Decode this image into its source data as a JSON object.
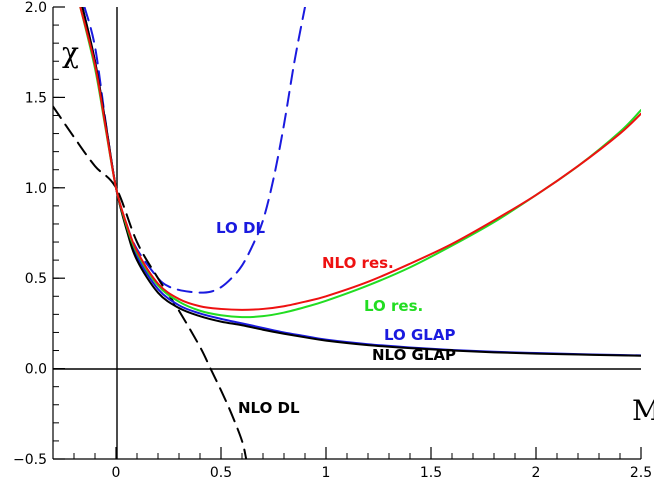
{
  "chart_data": {
    "type": "line",
    "title": "",
    "xlabel": "M",
    "ylabel": "χ",
    "xlim": [
      -0.3,
      2.5
    ],
    "ylim": [
      -0.5,
      2.0
    ],
    "grid": false,
    "legend": "none (inline curve labels)",
    "x_ticks": [
      "0",
      "0.5",
      "1",
      "1.5",
      "2",
      "2.5"
    ],
    "y_ticks": [
      "−0.5",
      "0.0",
      "0.5",
      "1.0",
      "1.5",
      "2.0"
    ],
    "series": [
      {
        "name": "LO DL",
        "color": "#1a1adf",
        "dash": "dashed",
        "points": [
          [
            -0.15,
            2.0
          ],
          [
            -0.1,
            1.78
          ],
          [
            -0.05,
            1.37
          ],
          [
            0.0,
            1.0
          ],
          [
            0.05,
            0.8
          ],
          [
            0.1,
            0.66
          ],
          [
            0.2,
            0.5
          ],
          [
            0.25,
            0.455
          ],
          [
            0.3,
            0.435
          ],
          [
            0.35,
            0.425
          ],
          [
            0.4,
            0.42
          ],
          [
            0.45,
            0.425
          ],
          [
            0.5,
            0.45
          ],
          [
            0.55,
            0.5
          ],
          [
            0.6,
            0.57
          ],
          [
            0.65,
            0.68
          ],
          [
            0.7,
            0.82
          ],
          [
            0.75,
            1.05
          ],
          [
            0.8,
            1.35
          ],
          [
            0.85,
            1.7
          ],
          [
            0.9,
            2.0
          ]
        ]
      },
      {
        "name": "NLO DL",
        "color": "#000000",
        "dash": "dashed",
        "points": [
          [
            -0.3,
            1.45
          ],
          [
            -0.2,
            1.28
          ],
          [
            -0.1,
            1.12
          ],
          [
            0.0,
            1.0
          ],
          [
            0.1,
            0.7
          ],
          [
            0.2,
            0.5
          ],
          [
            0.3,
            0.32
          ],
          [
            0.4,
            0.12
          ],
          [
            0.45,
            0.0
          ],
          [
            0.5,
            -0.12
          ],
          [
            0.55,
            -0.25
          ],
          [
            0.6,
            -0.4
          ],
          [
            0.62,
            -0.5
          ]
        ]
      },
      {
        "name": "LO GLAP",
        "color": "#1a1adf",
        "dash": "solid",
        "points": [
          [
            -0.16,
            2.0
          ],
          [
            -0.1,
            1.7
          ],
          [
            -0.05,
            1.36
          ],
          [
            0.0,
            1.0
          ],
          [
            0.05,
            0.78
          ],
          [
            0.1,
            0.62
          ],
          [
            0.2,
            0.44
          ],
          [
            0.3,
            0.35
          ],
          [
            0.4,
            0.305
          ],
          [
            0.5,
            0.275
          ],
          [
            0.6,
            0.25
          ],
          [
            0.7,
            0.225
          ],
          [
            0.8,
            0.2
          ],
          [
            0.9,
            0.18
          ],
          [
            1.0,
            0.16
          ],
          [
            1.2,
            0.135
          ],
          [
            1.4,
            0.117
          ],
          [
            1.6,
            0.103
          ],
          [
            1.8,
            0.093
          ],
          [
            2.0,
            0.086
          ],
          [
            2.2,
            0.08
          ],
          [
            2.4,
            0.075
          ],
          [
            2.5,
            0.073
          ]
        ]
      },
      {
        "name": "NLO GLAP",
        "color": "#000000",
        "dash": "solid",
        "points": [
          [
            -0.16,
            2.0
          ],
          [
            -0.1,
            1.7
          ],
          [
            -0.05,
            1.36
          ],
          [
            0.0,
            1.0
          ],
          [
            0.05,
            0.77
          ],
          [
            0.1,
            0.6
          ],
          [
            0.2,
            0.42
          ],
          [
            0.3,
            0.335
          ],
          [
            0.4,
            0.29
          ],
          [
            0.5,
            0.26
          ],
          [
            0.6,
            0.24
          ],
          [
            0.7,
            0.215
          ],
          [
            0.8,
            0.193
          ],
          [
            0.9,
            0.173
          ],
          [
            1.0,
            0.155
          ],
          [
            1.2,
            0.13
          ],
          [
            1.4,
            0.113
          ],
          [
            1.6,
            0.1
          ],
          [
            1.8,
            0.09
          ],
          [
            2.0,
            0.083
          ],
          [
            2.2,
            0.078
          ],
          [
            2.4,
            0.073
          ],
          [
            2.5,
            0.071
          ]
        ]
      },
      {
        "name": "LO res.",
        "color": "#22dd22",
        "dash": "solid",
        "points": [
          [
            -0.17,
            2.0
          ],
          [
            -0.1,
            1.66
          ],
          [
            -0.05,
            1.33
          ],
          [
            0.0,
            1.0
          ],
          [
            0.05,
            0.79
          ],
          [
            0.1,
            0.64
          ],
          [
            0.2,
            0.46
          ],
          [
            0.3,
            0.37
          ],
          [
            0.4,
            0.32
          ],
          [
            0.5,
            0.295
          ],
          [
            0.6,
            0.285
          ],
          [
            0.7,
            0.29
          ],
          [
            0.8,
            0.31
          ],
          [
            0.9,
            0.34
          ],
          [
            1.0,
            0.375
          ],
          [
            1.2,
            0.46
          ],
          [
            1.4,
            0.56
          ],
          [
            1.6,
            0.68
          ],
          [
            1.8,
            0.81
          ],
          [
            2.0,
            0.96
          ],
          [
            2.2,
            1.12
          ],
          [
            2.4,
            1.31
          ],
          [
            2.5,
            1.43
          ]
        ]
      },
      {
        "name": "NLO res.",
        "color": "#ee1111",
        "dash": "solid",
        "points": [
          [
            -0.17,
            2.0
          ],
          [
            -0.1,
            1.68
          ],
          [
            -0.05,
            1.34
          ],
          [
            0.0,
            1.0
          ],
          [
            0.05,
            0.8
          ],
          [
            0.1,
            0.65
          ],
          [
            0.2,
            0.47
          ],
          [
            0.3,
            0.385
          ],
          [
            0.4,
            0.345
          ],
          [
            0.5,
            0.33
          ],
          [
            0.6,
            0.325
          ],
          [
            0.7,
            0.33
          ],
          [
            0.8,
            0.345
          ],
          [
            0.9,
            0.37
          ],
          [
            1.0,
            0.4
          ],
          [
            1.2,
            0.48
          ],
          [
            1.4,
            0.58
          ],
          [
            1.6,
            0.69
          ],
          [
            1.8,
            0.82
          ],
          [
            2.0,
            0.96
          ],
          [
            2.2,
            1.12
          ],
          [
            2.4,
            1.3
          ],
          [
            2.5,
            1.41
          ]
        ]
      }
    ],
    "annotations": {
      "lo_dl": "LO DL",
      "nlo_res": "NLO res.",
      "lo_res": "LO res.",
      "lo_glap": "LO GLAP",
      "nlo_glap": "NLO GLAP",
      "nlo_dl": "NLO DL"
    }
  }
}
